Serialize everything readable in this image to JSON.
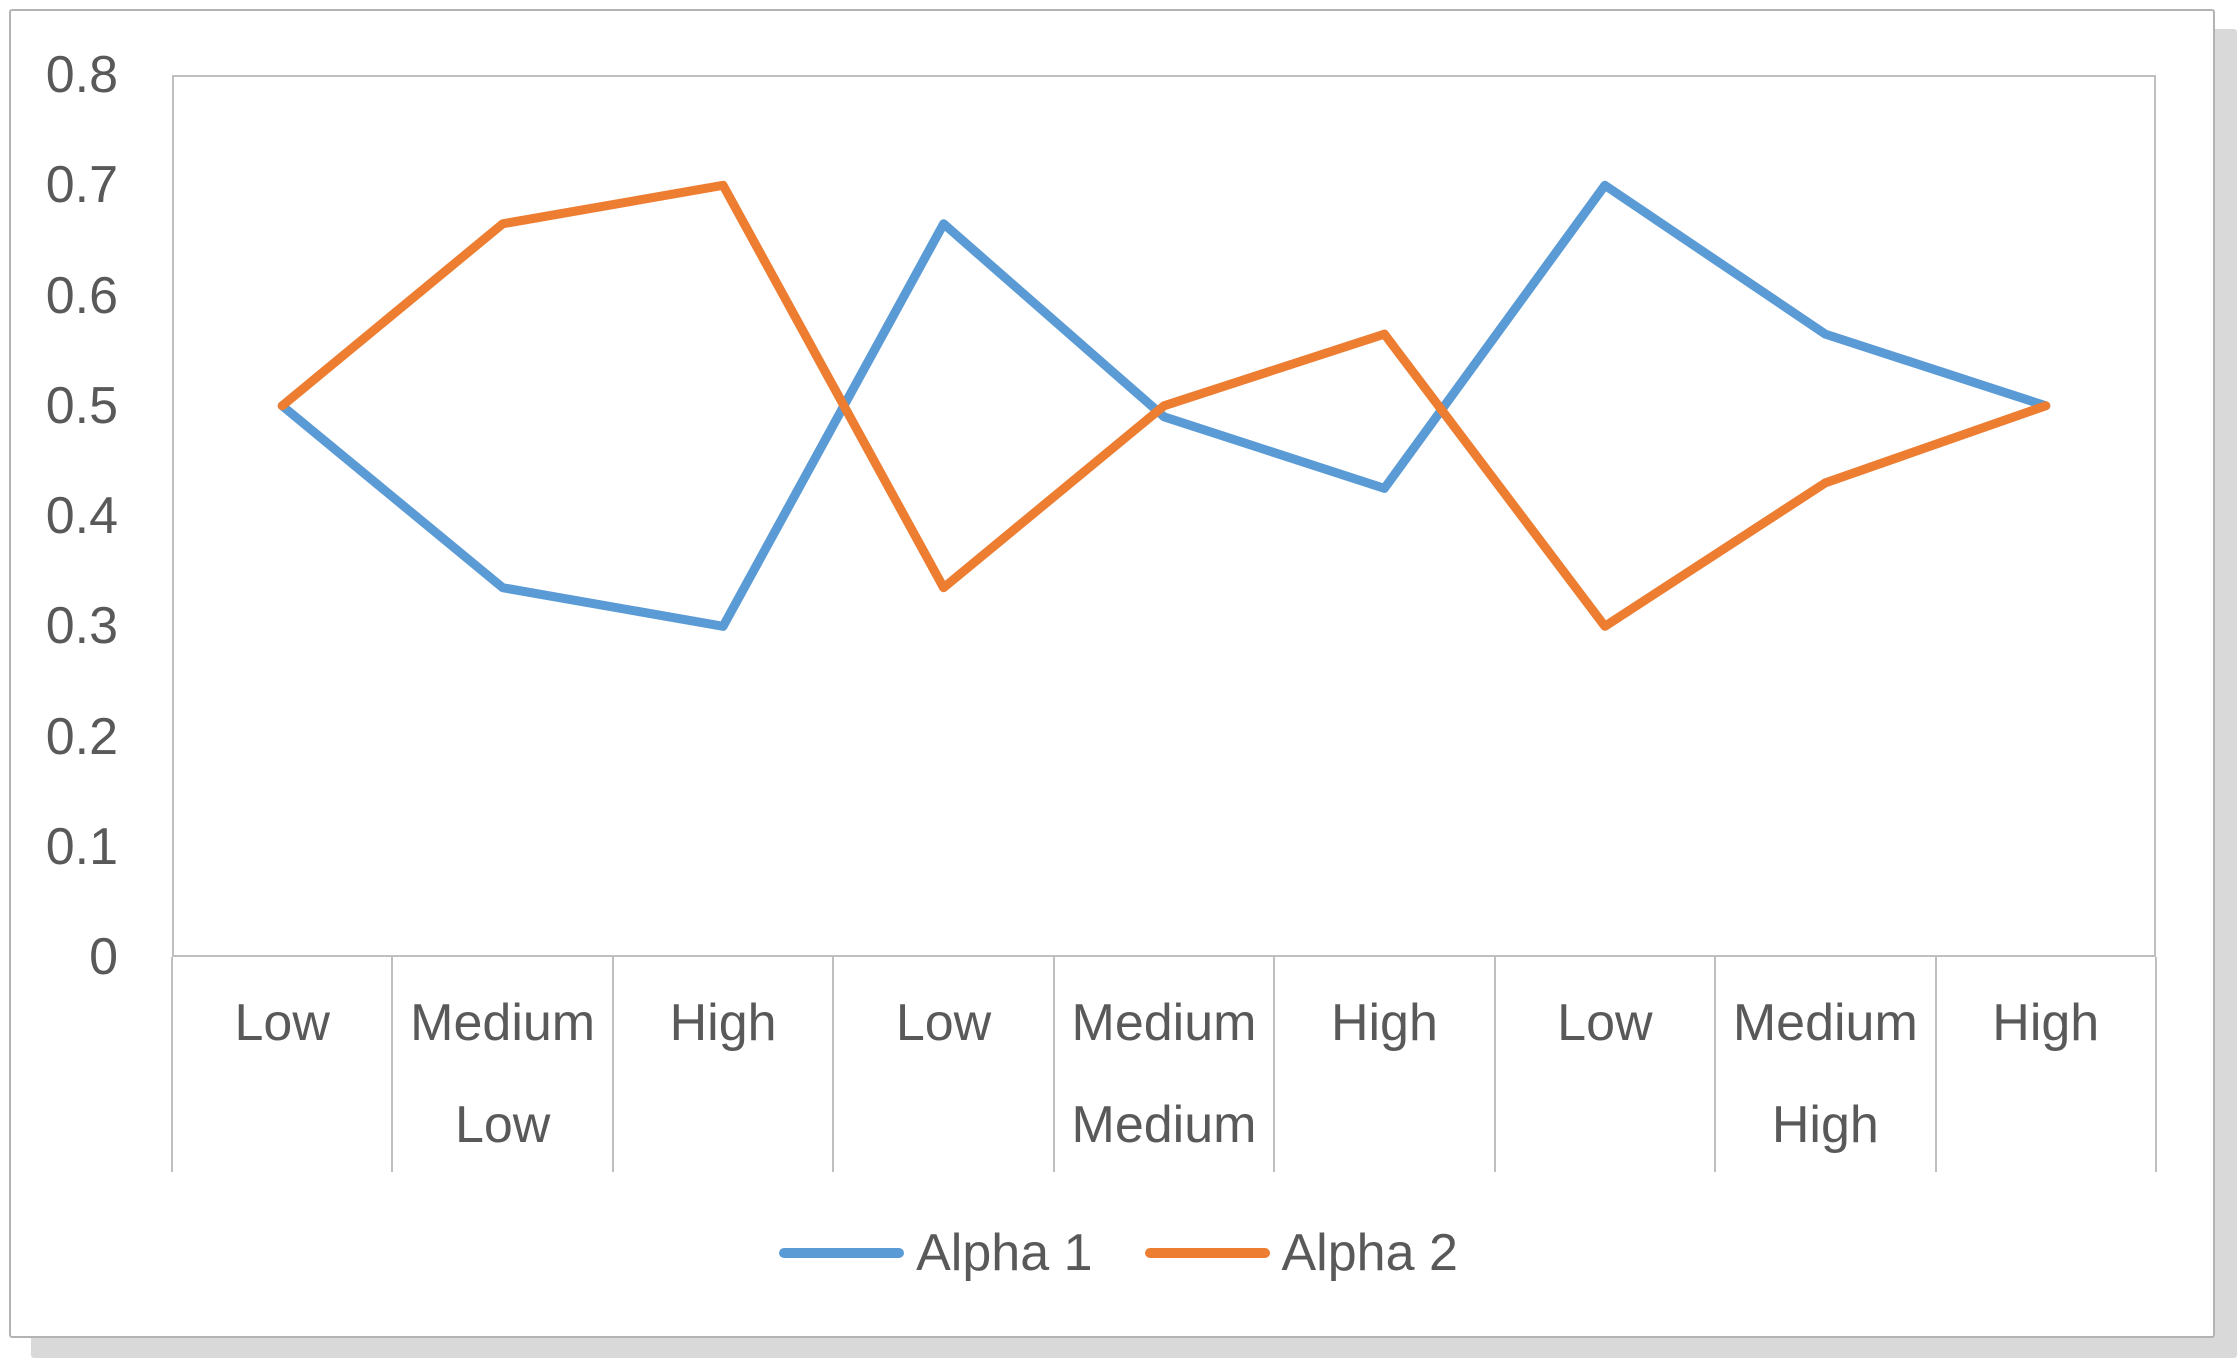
{
  "chart_data": {
    "type": "line",
    "title": "",
    "xlabel": "",
    "ylabel": "",
    "categories_level1": [
      "Low",
      "Medium",
      "High",
      "Low",
      "Medium",
      "High",
      "Low",
      "Medium",
      "High"
    ],
    "categories_level2": [
      "Low",
      "Medium",
      "High"
    ],
    "series": [
      {
        "name": "Alpha 1",
        "color": "#5B9BD5",
        "values": [
          0.5,
          0.335,
          0.3,
          0.665,
          0.49,
          0.425,
          0.7,
          0.565,
          0.5
        ]
      },
      {
        "name": "Alpha 2",
        "color": "#ED7D31",
        "values": [
          0.5,
          0.665,
          0.7,
          0.335,
          0.5,
          0.565,
          0.3,
          0.43,
          0.5
        ]
      }
    ],
    "ylim": [
      0,
      0.8
    ],
    "yticks": [
      "0.8",
      "0.7",
      "0.6",
      "0.5",
      "0.4",
      "0.3",
      "0.2",
      "0.1",
      "0"
    ],
    "grid": false,
    "legend_position": "bottom"
  },
  "colors": {
    "axis_line": "#bfbfbf",
    "label_text": "#595959",
    "sheet_border": "#b3b3b3",
    "shadow": "#d9d9d9"
  }
}
